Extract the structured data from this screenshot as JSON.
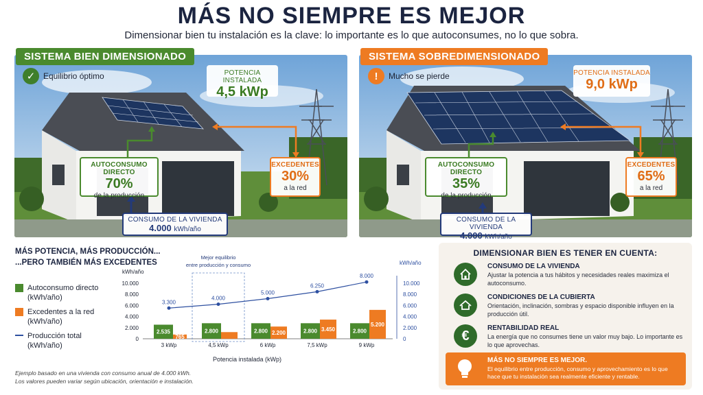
{
  "title": "MÁS NO SIEMPRE ES MEJOR",
  "subtitle": "Dimensionar bien tu instalación es la clave: lo importante es lo que autoconsumes, no lo que sobra.",
  "left_panel": {
    "tag": "SISTEMA BIEN DIMENSIONADO",
    "status": "Equilibrio óptimo",
    "power_label": "POTENCIA INSTALADA",
    "power_value": "4,5 kWp",
    "self_label": "AUTOCONSUMO DIRECTO",
    "self_value": "70%",
    "self_sub": "de la producción",
    "excess_label": "EXCEDENTES",
    "excess_value": "30%",
    "excess_sub": "a la red",
    "consumption_label": "CONSUMO DE LA VIVIENDA",
    "consumption_value": "4.000",
    "consumption_unit": "kWh/año"
  },
  "right_panel": {
    "tag": "SISTEMA SOBREDIMENSIONADO",
    "status": "Mucho se pierde",
    "power_label": "POTENCIA INSTALADA",
    "power_value": "9,0 kWp",
    "self_label": "AUTOCONSUMO DIRECTO",
    "self_value": "35%",
    "self_sub": "de la producción",
    "excess_label": "EXCEDENTES",
    "excess_value": "65%",
    "excess_sub": "a la red",
    "consumption_label": "CONSUMO DE LA VIVIENDA",
    "consumption_value": "4.000",
    "consumption_unit": "kWh/año"
  },
  "chart_section": {
    "heading_1": "MÁS POTENCIA, MÁS PRODUCCIÓN...",
    "heading_2": "...PERO TAMBIÉN MÁS EXCEDENTES",
    "legend": [
      {
        "label": "Autoconsumo directo",
        "unit": "(kWh/año)",
        "color": "#4a8a2e"
      },
      {
        "label": "Excedentes a la red",
        "unit": "(kWh/año)",
        "color": "#ee7b22"
      },
      {
        "label": "Producción total",
        "unit": "(kWh/año)",
        "color": "#2d4fa0"
      }
    ],
    "note_1": "Ejemplo basado en una vivienda con consumo anual de 4.000 kWh.",
    "note_2": "Los valores pueden variar según ubicación, orientación e instalación."
  },
  "chart_data": {
    "type": "bar",
    "stacked": true,
    "categories": [
      "3 kWp",
      "4,5 kWp",
      "6 kWp",
      "7,5 kWp",
      "9 kWp"
    ],
    "series": [
      {
        "name": "Autoconsumo directo",
        "values": [
          2535,
          2800,
          2800,
          2800,
          2800
        ],
        "labels": [
          "2.535",
          "2.800",
          "2.800",
          "2.800",
          "2.800"
        ],
        "color": "#4a8a2e"
      },
      {
        "name": "Excedentes a la red",
        "values": [
          765,
          1200,
          2200,
          3450,
          5200
        ],
        "labels": [
          "765",
          "",
          "2.200",
          "3.450",
          "5.200"
        ],
        "color": "#ee7b22"
      },
      {
        "name": "Producción total",
        "type": "line",
        "values": [
          3300,
          4000,
          5000,
          6250,
          8000
        ],
        "labels": [
          "3.300",
          "4.000",
          "5.000",
          "6.250",
          "8.000"
        ],
        "color": "#2d4fa0"
      }
    ],
    "ylabel": "kWh/año",
    "ylabel_right": "kWh/año",
    "y_ticks": [
      "0",
      "2.000",
      "4.000",
      "6.000",
      "8.000",
      "10.000"
    ],
    "y_ticks_right": [
      "0",
      "2.000",
      "4.000",
      "6.000",
      "8.000",
      "10.000"
    ],
    "ylim": [
      0,
      10000
    ],
    "xlabel": "Potencia instalada (kWp)",
    "annotation": "Mejor equilibrio entre producción y consumo",
    "highlight_category": "4,5 kWp",
    "grid": false
  },
  "tips": {
    "title": "DIMENSIONAR BIEN ES TENER EN CUENTA:",
    "items": [
      {
        "icon": "house-icon",
        "title": "CONSUMO DE LA VIVIENDA",
        "desc": "Ajustar la potencia a tus hábitos y necesidades reales maximiza el autoconsumo."
      },
      {
        "icon": "roof-icon",
        "title": "CONDICIONES DE LA CUBIERTA",
        "desc": "Orientación, inclinación, sombras y espacio disponible influyen en la producción útil."
      },
      {
        "icon": "euro-icon",
        "title": "RENTABILIDAD REAL",
        "desc": "La energía que no consumes tiene un valor muy bajo. Lo importante es lo que aprovechas."
      }
    ],
    "cta_title": "MÁS NO SIEMPRE ES MEJOR.",
    "cta_desc": "El equilibrio entre producción, consumo y aprovechamiento es lo que hace que tu instalación sea realmente eficiente y rentable."
  },
  "colors": {
    "green": "#4a8a2e",
    "orange": "#ee7b22",
    "navy": "#233a7a",
    "line": "#2d4fa0"
  }
}
